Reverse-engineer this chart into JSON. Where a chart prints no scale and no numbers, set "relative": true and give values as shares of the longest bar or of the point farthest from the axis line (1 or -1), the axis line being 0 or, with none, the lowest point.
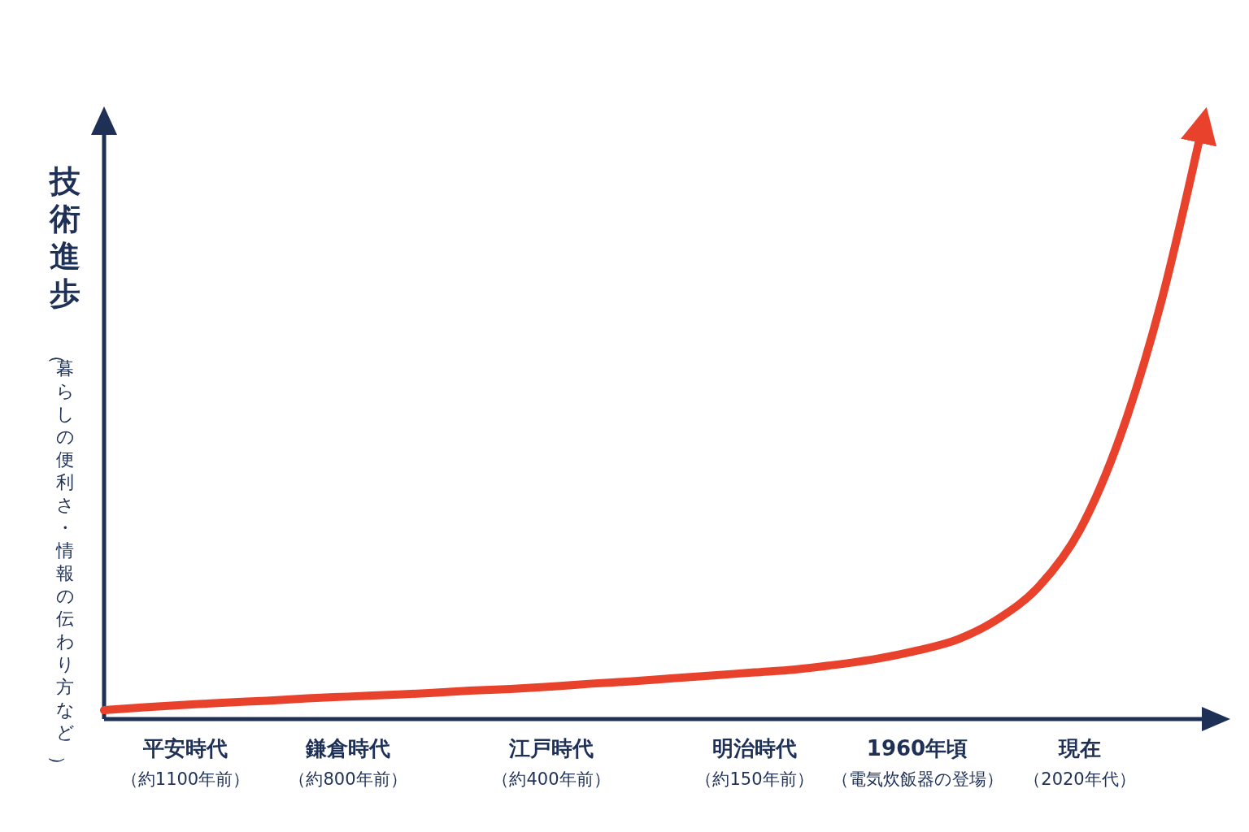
{
  "chart_data": {
    "type": "line",
    "relative": true,
    "ylabel": "技術進歩（暮らしの便利さ・情報の伝わり方など）",
    "categories": [
      null,
      null,
      "平安時代（約1100年前）",
      null,
      null,
      null,
      "鎌倉時代（約800年前）",
      null,
      null,
      null,
      null,
      "江戸時代（約400年前）",
      null,
      null,
      null,
      null,
      "明治時代（約150年前）",
      null,
      null,
      null,
      "1960年頃（電気炊飯器の登場）",
      null,
      null,
      null,
      "現在（2020年代）",
      null,
      null,
      null
    ],
    "series": [
      {
        "color": "#e8412c",
        "values": [
          0.015,
          0.02,
          0.024,
          0.028,
          0.031,
          0.035,
          0.038,
          0.041,
          0.044,
          0.048,
          0.051,
          0.055,
          0.06,
          0.064,
          0.069,
          0.074,
          0.079,
          0.084,
          0.092,
          0.102,
          0.116,
          0.135,
          0.17,
          0.225,
          0.32,
          0.48,
          0.706,
          1
        ]
      }
    ],
    "marker": "none",
    "line_style": "solid"
  }
}
